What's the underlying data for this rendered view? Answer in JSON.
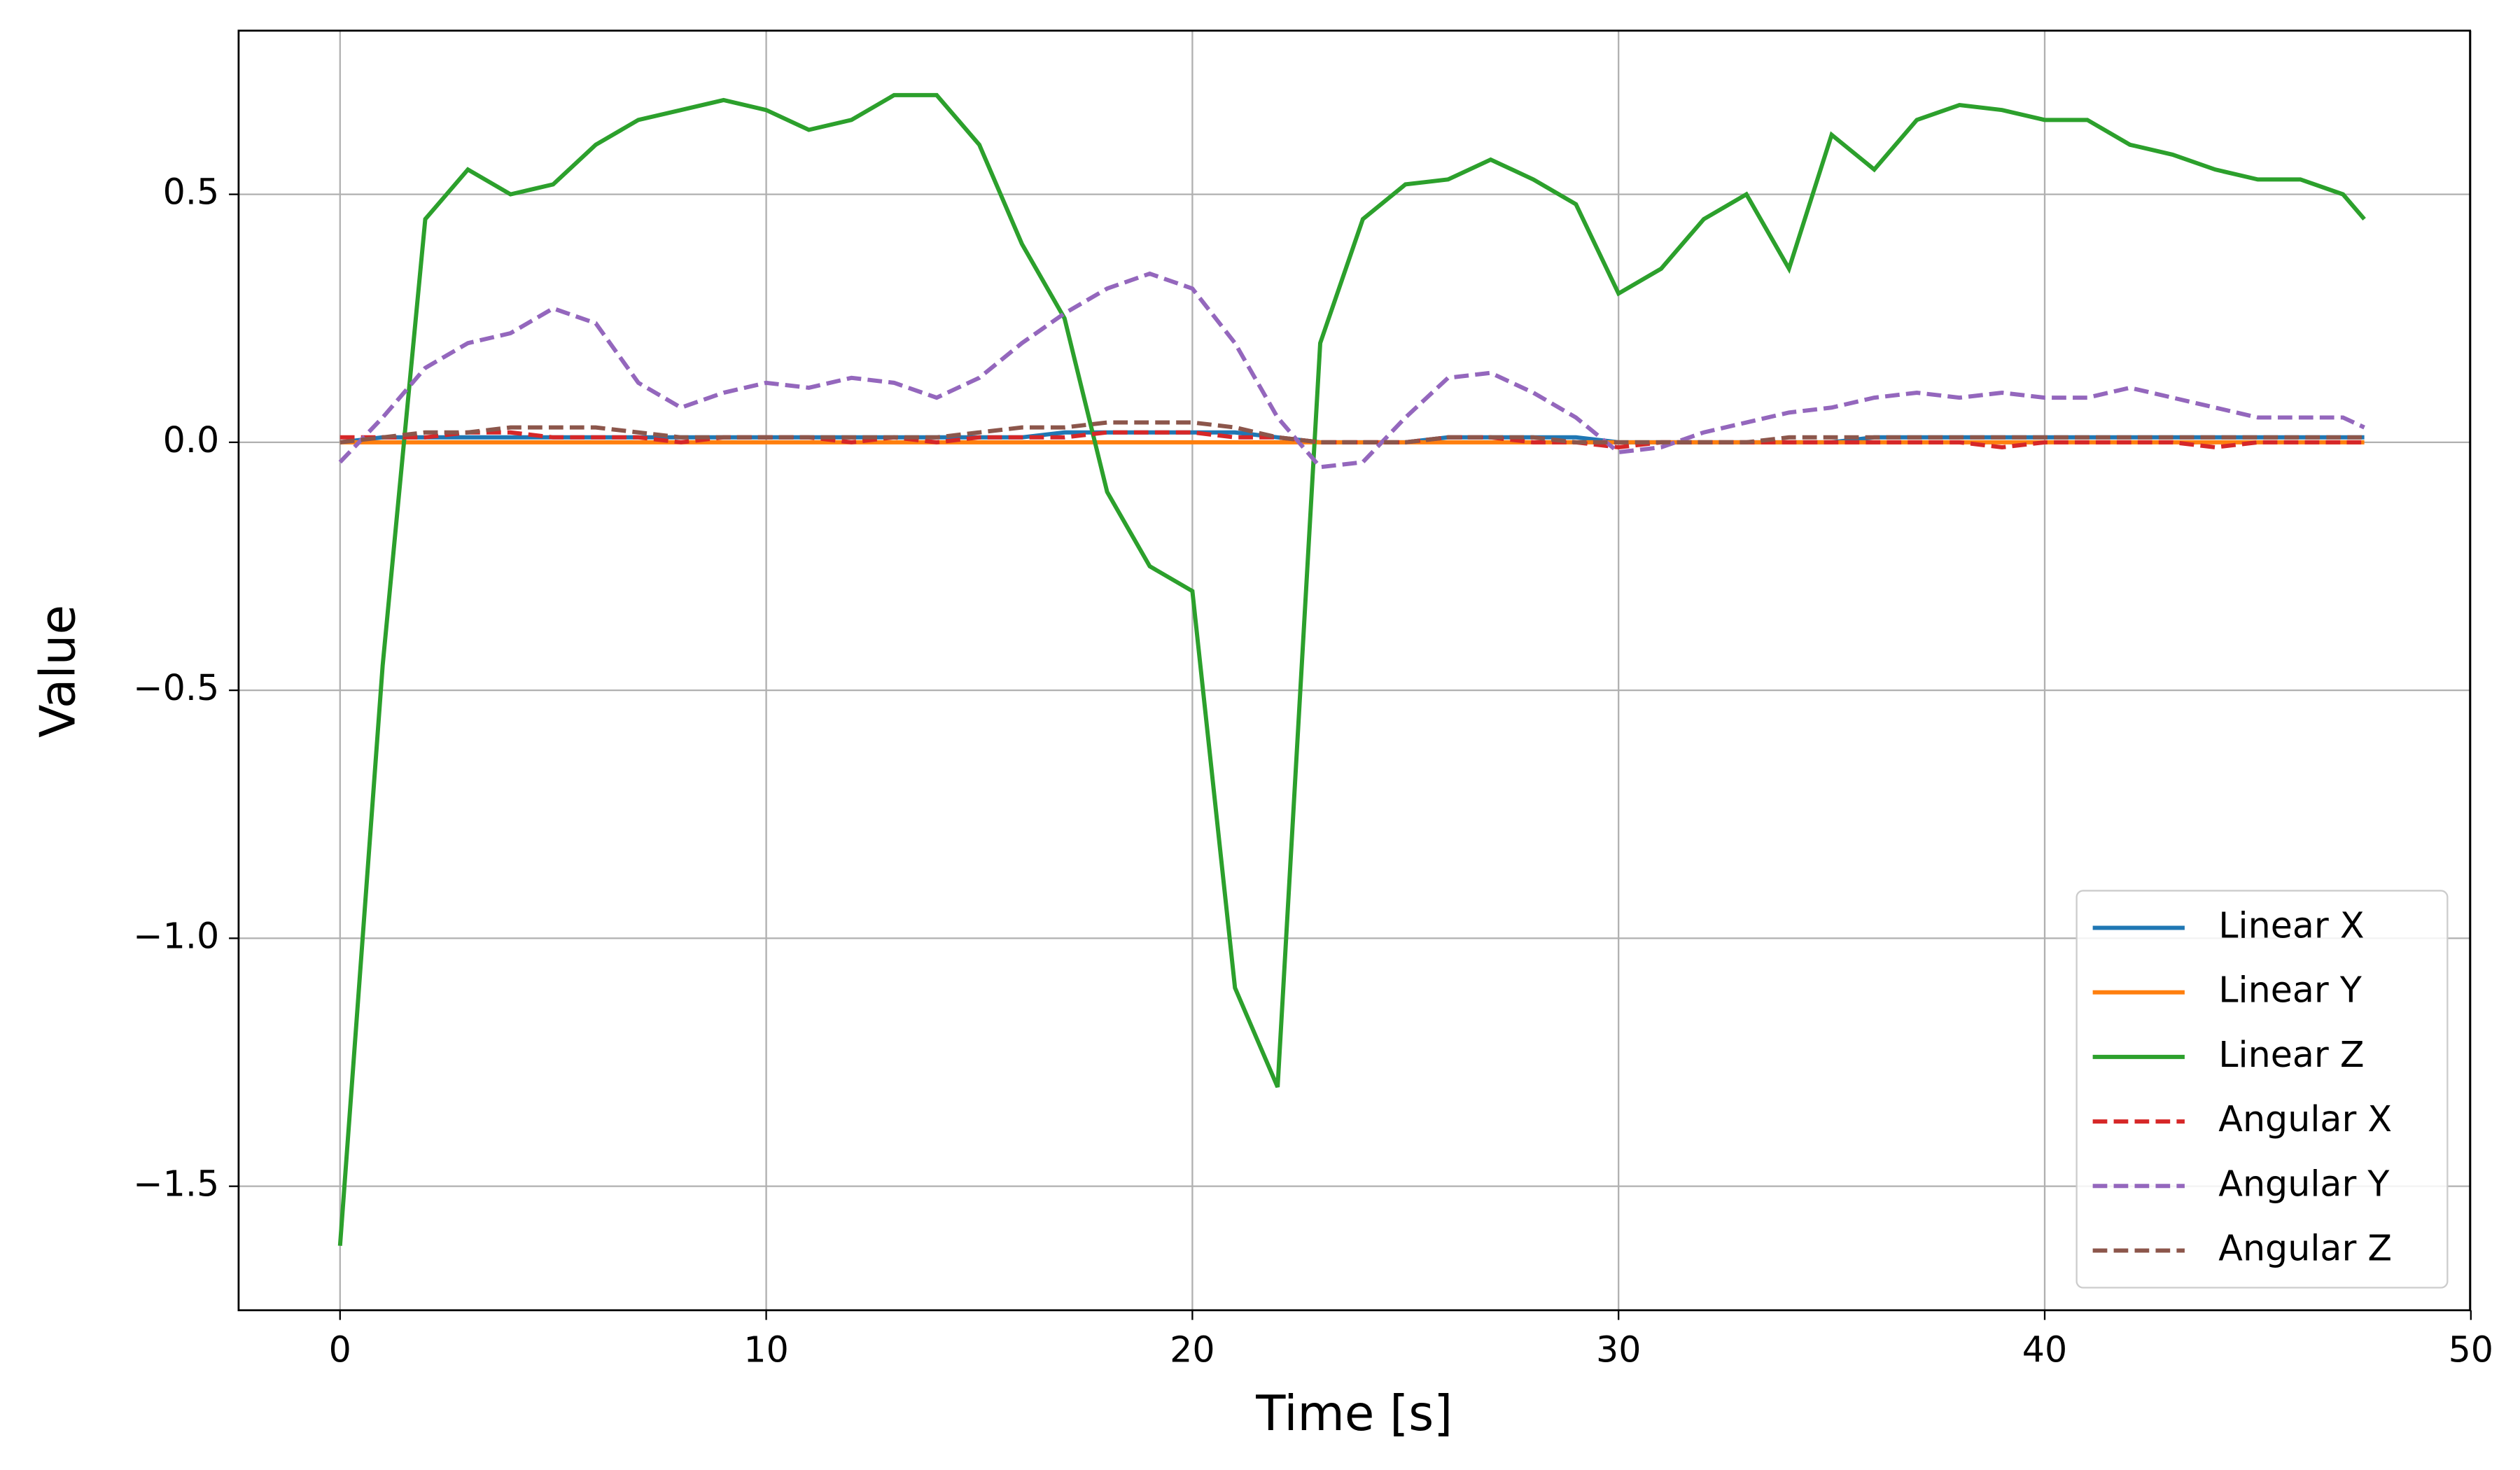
{
  "chart_data": {
    "type": "line",
    "x_label": "Time [s]",
    "y_label": "Value",
    "x": [
      0,
      1,
      2,
      3,
      4,
      5,
      6,
      7,
      8,
      9,
      10,
      11,
      12,
      13,
      14,
      15,
      16,
      17,
      18,
      19,
      20,
      21,
      22,
      23,
      24,
      25,
      26,
      27,
      28,
      29,
      30,
      31,
      32,
      33,
      34,
      35,
      36,
      37,
      38,
      39,
      40,
      41,
      42,
      43,
      44,
      45,
      46,
      47,
      47.5
    ],
    "series": [
      {
        "name": "Linear X",
        "color": "#1f77b4",
        "linestyle": "solid",
        "values": [
          0,
          0.01,
          0.01,
          0.01,
          0.01,
          0.01,
          0.01,
          0.01,
          0.01,
          0.01,
          0.01,
          0.01,
          0.01,
          0.01,
          0.01,
          0.01,
          0.01,
          0.02,
          0.02,
          0.02,
          0.02,
          0.02,
          0.01,
          0,
          0,
          0,
          0.01,
          0.01,
          0.01,
          0.01,
          0,
          0,
          0,
          0,
          0,
          0,
          0.01,
          0.01,
          0.01,
          0.01,
          0.01,
          0.01,
          0.01,
          0.01,
          0.01,
          0.01,
          0.01,
          0.01,
          0.01
        ]
      },
      {
        "name": "Linear Y",
        "color": "#ff7f0e",
        "linestyle": "solid",
        "values": [
          0,
          0,
          0,
          0,
          0,
          0,
          0,
          0,
          0,
          0,
          0,
          0,
          0,
          0,
          0,
          0,
          0,
          0,
          0,
          0,
          0,
          0,
          0,
          0,
          0,
          0,
          0,
          0,
          0,
          0,
          0,
          0,
          0,
          0,
          0,
          0,
          0,
          0,
          0,
          0,
          0,
          0,
          0,
          0,
          0,
          0,
          0,
          0,
          0
        ]
      },
      {
        "name": "Linear Z",
        "color": "#2ca02c",
        "linestyle": "solid",
        "values": [
          -1.62,
          -0.45,
          0.45,
          0.55,
          0.5,
          0.52,
          0.6,
          0.65,
          0.67,
          0.69,
          0.67,
          0.63,
          0.65,
          0.7,
          0.7,
          0.6,
          0.4,
          0.25,
          -0.1,
          -0.25,
          -0.3,
          -1.1,
          -1.3,
          0.2,
          0.45,
          0.52,
          0.53,
          0.57,
          0.53,
          0.48,
          0.3,
          0.35,
          0.45,
          0.5,
          0.35,
          0.62,
          0.55,
          0.65,
          0.68,
          0.67,
          0.65,
          0.65,
          0.6,
          0.58,
          0.55,
          0.53,
          0.53,
          0.5,
          0.45
        ]
      },
      {
        "name": "Angular X",
        "color": "#d62728",
        "linestyle": "dashed",
        "values": [
          0.01,
          0.01,
          0.01,
          0.02,
          0.02,
          0.01,
          0.01,
          0.01,
          0,
          0.01,
          0.01,
          0.01,
          0,
          0.01,
          0,
          0.01,
          0.01,
          0.01,
          0.02,
          0.02,
          0.02,
          0.01,
          0.01,
          0,
          0,
          0,
          0.01,
          0.01,
          0,
          0,
          -0.01,
          0,
          0,
          0,
          0,
          0,
          0,
          0,
          0,
          -0.01,
          0,
          0,
          0,
          0,
          -0.01,
          0,
          0,
          0,
          0
        ]
      },
      {
        "name": "Angular Y",
        "color": "#9467bd",
        "linestyle": "dashed",
        "values": [
          -0.04,
          0.05,
          0.15,
          0.2,
          0.22,
          0.27,
          0.24,
          0.12,
          0.07,
          0.1,
          0.12,
          0.11,
          0.13,
          0.12,
          0.09,
          0.13,
          0.2,
          0.26,
          0.31,
          0.34,
          0.31,
          0.2,
          0.05,
          -0.05,
          -0.04,
          0.05,
          0.13,
          0.14,
          0.1,
          0.05,
          -0.02,
          -0.01,
          0.02,
          0.04,
          0.06,
          0.07,
          0.09,
          0.1,
          0.09,
          0.1,
          0.09,
          0.09,
          0.11,
          0.09,
          0.07,
          0.05,
          0.05,
          0.05,
          0.03
        ]
      },
      {
        "name": "Angular Z",
        "color": "#8c564b",
        "linestyle": "dashed",
        "values": [
          0,
          0.01,
          0.02,
          0.02,
          0.03,
          0.03,
          0.03,
          0.02,
          0.01,
          0.01,
          0.01,
          0.01,
          0.01,
          0.01,
          0.01,
          0.02,
          0.03,
          0.03,
          0.04,
          0.04,
          0.04,
          0.03,
          0.01,
          0,
          0,
          0,
          0.01,
          0.01,
          0.01,
          0,
          0,
          0,
          0,
          0,
          0.01,
          0.01,
          0.01,
          0.01,
          0.01,
          0.01,
          0.01,
          0.01,
          0.01,
          0.01,
          0.01,
          0.01,
          0.01,
          0.01,
          0.01
        ]
      }
    ],
    "xlim": [
      -2.38,
      49.98
    ],
    "ylim": [
      -1.75,
      0.83
    ],
    "xticks": [
      0,
      10,
      20,
      30,
      40,
      50
    ],
    "yticks": [
      {
        "value": -1.5,
        "label": "−1.5"
      },
      {
        "value": -1.0,
        "label": "−1.0"
      },
      {
        "value": -0.5,
        "label": "−0.5"
      },
      {
        "value": 0.0,
        "label": "0.0"
      },
      {
        "value": 0.5,
        "label": "0.5"
      }
    ],
    "grid": true,
    "legend": "lower right"
  }
}
